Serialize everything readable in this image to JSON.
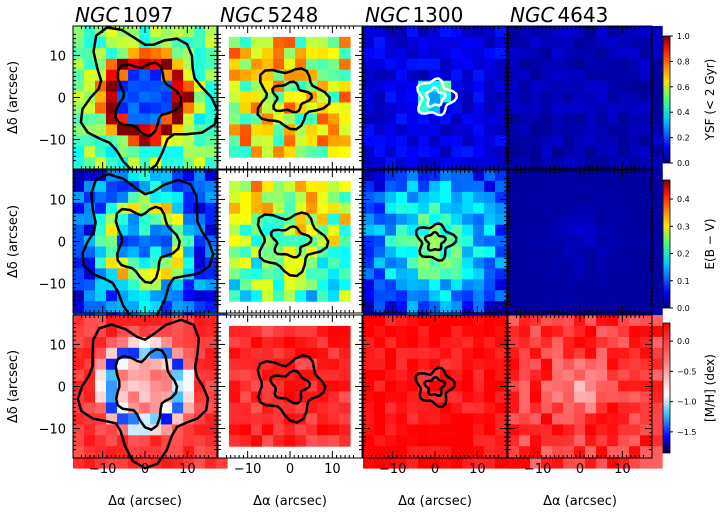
{
  "chart_data": {
    "type": "heatmap",
    "columns": [
      {
        "title_name": "NGC",
        "title_number": "1097"
      },
      {
        "title_name": "NGC",
        "title_number": "5248"
      },
      {
        "title_name": "NGC",
        "title_number": "1300"
      },
      {
        "title_name": "NGC",
        "title_number": "4643"
      }
    ],
    "rows": [
      {
        "quantity": "YSF (< 2 Gyr)",
        "colormap": "jet",
        "colorbar": {
          "range": [
            0,
            1.0
          ],
          "ticks": [
            "0.0",
            "0.2",
            "0.4",
            "0.6",
            "0.8",
            "1.0"
          ]
        }
      },
      {
        "quantity": "E(B − V)",
        "colormap": "jet",
        "colorbar": {
          "range": [
            0,
            0.47
          ],
          "ticks": [
            "0.0",
            "0.1",
            "0.2",
            "0.3",
            "0.4"
          ]
        }
      },
      {
        "quantity": "[M/H] (dex)",
        "colormap": "red-white-blue-black",
        "colorbar": {
          "range": [
            -1.85,
            0.3
          ],
          "ticks": [
            "0.0",
            "−0.5",
            "−1.0",
            "−1.5"
          ]
        }
      }
    ],
    "xlabel": "Δα (arcsec)",
    "ylabel": "Δδ (arcsec)",
    "xlim": [
      -17,
      17
    ],
    "ylim": [
      -17,
      17
    ],
    "xticks": [
      "−10",
      "0",
      "10"
    ],
    "yticks": [
      "10",
      "0",
      "−10"
    ],
    "contours": true
  }
}
